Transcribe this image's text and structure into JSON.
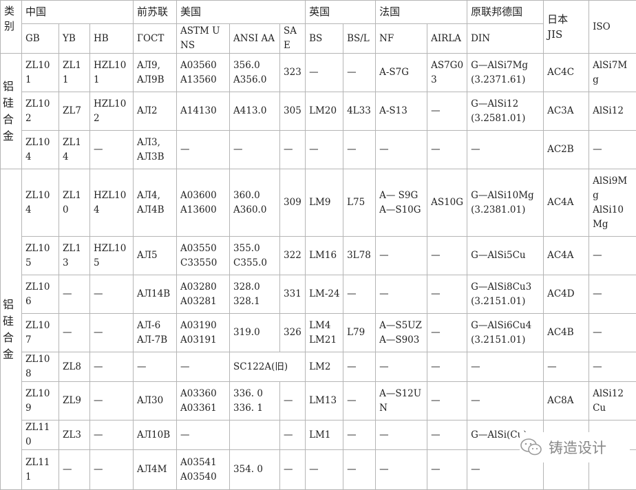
{
  "header": {
    "category": "类别",
    "groups": [
      "中国",
      "前苏联",
      "美国",
      "英国",
      "法国",
      "原联邦德国",
      "日本\nJIS",
      "ISO"
    ],
    "columns": [
      "GB",
      "YB",
      "HB",
      "ГOCT",
      "ASTM UNS",
      "ANSI  AA",
      "SAE",
      "BS",
      "BS/L",
      "NF",
      "AIRLA",
      "DIN"
    ]
  },
  "categories": [
    "铝\n硅\n合\n金",
    "铝\n硅\n合\n金"
  ],
  "rows": [
    [
      "ZL101",
      "ZL11",
      "HZL101",
      "AЛ9,\nAЛ9B",
      "A03560\nA13560",
      "356.0\nA356.0",
      "323",
      "—",
      "—",
      "A-S7G",
      "AS7G0\n3",
      "G—AlSi7Mg\n(3.2371.61)",
      "AC4C",
      "AlSi7M\ng"
    ],
    [
      "ZL102",
      "ZL7",
      "HZL102",
      "AЛ2",
      "A14130",
      "A413.0",
      "305",
      "LM20",
      "4L33",
      "A-S13",
      "—",
      "G—AlSi12\n(3.2581.01)",
      "AC3A",
      "AlSi12"
    ],
    [
      "ZL104",
      "ZL14",
      "—",
      "AЛ3,\nAЛ3B",
      "—",
      "—",
      "—",
      "—",
      "—",
      "—",
      "—",
      "—",
      "AC2B",
      "—"
    ],
    [
      "ZL104",
      "ZL10",
      "HZL104",
      "AЛ4,\nAЛ4B",
      "A03600\nA13600",
      "360.0\nA360.0",
      "309",
      "LM9",
      "L75",
      "A— S9G\nA—S10G",
      "AS10G",
      "G—AlSi10Mg\n(3.2381.01)",
      "AC4A",
      "AlSi9M\ng\nAlSi10\nMg"
    ],
    [
      "ZL105",
      "ZL13",
      "HZL105",
      "AЛ5",
      "A03550\nC33550",
      "355.0\nC355.0",
      "322",
      "LM16",
      "3L78",
      "—",
      "—",
      "G—AlSi5Cu",
      "AC4A",
      "—"
    ],
    [
      "ZL106",
      "—",
      "—",
      "AЛ14B",
      "A03280\nA03281",
      "328.0\n328.1",
      "331",
      "LM-24",
      "—",
      "—",
      "—",
      "G—AlSi8Cu3\n(3.2151.01)",
      "AC4D",
      "—"
    ],
    [
      "ZL107",
      "—",
      "—",
      "AЛ-6\nAЛ-7B",
      "A03190\nA03191",
      "319.0",
      "326",
      "LM4\nLM21",
      "L79",
      "A—S5UZ\nA—S903",
      "—",
      "G—AlSi6Cu4\n(3.2151.01)",
      "AC4B",
      "—"
    ],
    [
      "ZL108",
      "ZL8",
      "—",
      "—",
      "—",
      {
        "text": "SC122A(旧)",
        "span": 2
      },
      "LM2",
      "—",
      "—",
      "—",
      "—",
      "—",
      "—"
    ],
    [
      "ZL109",
      "ZL9",
      "—",
      "AЛ30",
      "A03360\nA03361",
      "336. 0\n336. 1",
      "—",
      "LM13",
      "—",
      "A—S12U\nN",
      "—",
      "—",
      "AC8A",
      "AlSi12\nCu"
    ],
    [
      "ZL110",
      "ZL3",
      "—",
      "AЛ10B",
      "—",
      "",
      "—",
      "LM1",
      "—",
      "—",
      "—",
      "G—AlSi(Cu)",
      "—",
      "—"
    ],
    [
      "ZL111",
      "—",
      "—",
      "AЛ4M",
      "A03541\nA03540",
      "354. 0",
      "—",
      "—",
      "—",
      "—",
      "—",
      "—",
      "",
      ""
    ]
  ],
  "watermark": {
    "text": "铸造设计",
    "icon": "wechat-icon",
    "color": "#888888"
  },
  "colors": {
    "border": "#b5b5b5",
    "text": "#222222"
  }
}
